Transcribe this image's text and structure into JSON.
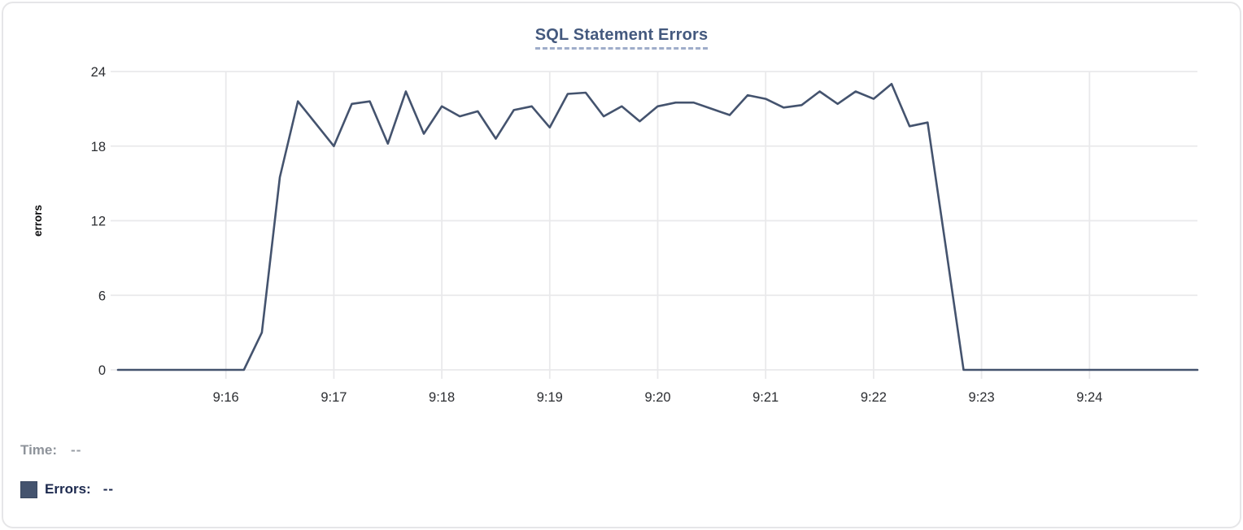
{
  "chart_data": {
    "type": "line",
    "title": "SQL Statement Errors",
    "xlabel": "",
    "ylabel": "errors",
    "y_ticks": [
      0,
      6,
      12,
      18,
      24
    ],
    "ylim": [
      0,
      24
    ],
    "x_tick_labels": [
      "9:16",
      "9:17",
      "9:18",
      "9:19",
      "9:20",
      "9:21",
      "9:22",
      "9:23",
      "9:24"
    ],
    "x_domain": [
      "9:15:00",
      "9:25:00"
    ],
    "interval_seconds": 10,
    "grid": true,
    "legend_position": "bottom-left",
    "series": [
      {
        "name": "Errors",
        "color": "#44536e",
        "times": [
          "9:15:00",
          "9:15:10",
          "9:15:20",
          "9:15:30",
          "9:15:40",
          "9:15:50",
          "9:16:00",
          "9:16:10",
          "9:16:20",
          "9:16:30",
          "9:16:40",
          "9:16:50",
          "9:17:00",
          "9:17:10",
          "9:17:20",
          "9:17:30",
          "9:17:40",
          "9:17:50",
          "9:18:00",
          "9:18:10",
          "9:18:20",
          "9:18:30",
          "9:18:40",
          "9:18:50",
          "9:19:00",
          "9:19:10",
          "9:19:20",
          "9:19:30",
          "9:19:40",
          "9:19:50",
          "9:20:00",
          "9:20:10",
          "9:20:20",
          "9:20:30",
          "9:20:40",
          "9:20:50",
          "9:21:00",
          "9:21:10",
          "9:21:20",
          "9:21:30",
          "9:21:40",
          "9:21:50",
          "9:22:00",
          "9:22:10",
          "9:22:20",
          "9:22:30",
          "9:22:40",
          "9:22:50",
          "9:23:00",
          "9:23:10",
          "9:23:20",
          "9:23:30",
          "9:23:40",
          "9:23:50",
          "9:24:00",
          "9:24:10",
          "9:24:20",
          "9:24:30",
          "9:24:40",
          "9:24:50",
          "9:25:00"
        ],
        "values": [
          0,
          0,
          0,
          0,
          0,
          0,
          0,
          0,
          3,
          15.5,
          21.6,
          19.8,
          18,
          21.4,
          21.6,
          18.2,
          22.4,
          19,
          21.2,
          20.4,
          20.8,
          18.6,
          20.9,
          21.2,
          19.5,
          22.2,
          22.3,
          20.4,
          21.2,
          20,
          21.2,
          21.5,
          21.5,
          21,
          20.5,
          22.1,
          21.8,
          21.1,
          21.3,
          22.4,
          21.4,
          22.4,
          21.8,
          23,
          19.6,
          19.9,
          10,
          0,
          0,
          0,
          0,
          0,
          0,
          0,
          0,
          0,
          0,
          0,
          0,
          0,
          0
        ]
      }
    ]
  },
  "legend": {
    "time_label": "Time:",
    "time_value": "--",
    "series_label": "Errors:",
    "series_value": "--"
  },
  "colors": {
    "line": "#44536e",
    "grid": "#e9e9eb",
    "tick_text": "#2b2d31",
    "title_text": "#44597e",
    "title_dash": "#9fadca",
    "time_text": "#8e939a",
    "errors_text": "#1c294e",
    "card_border": "#e6e6e8"
  }
}
